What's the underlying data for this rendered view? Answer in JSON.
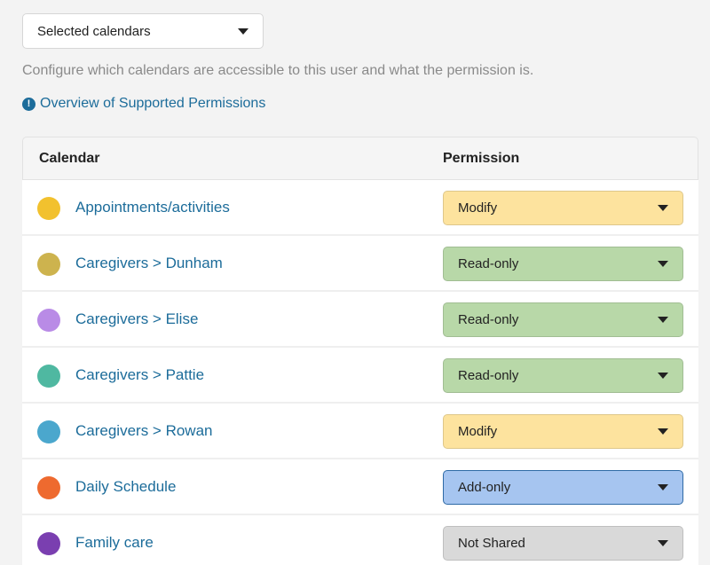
{
  "scope_select": {
    "value": "Selected calendars"
  },
  "description": "Configure which calendars are accessible to this user and what the permission is.",
  "overview_link": {
    "icon": "info-icon",
    "icon_glyph": "!",
    "label": "Overview of Supported Permissions"
  },
  "table": {
    "headers": {
      "calendar": "Calendar",
      "permission": "Permission"
    },
    "rows": [
      {
        "name": "Appointments/activities",
        "color": "#f2c12e",
        "permission": "Modify",
        "perm_bg": "#fde39e"
      },
      {
        "name": "Caregivers > Dunham",
        "color": "#cdb34e",
        "permission": "Read-only",
        "perm_bg": "#b8d8a8"
      },
      {
        "name": "Caregivers > Elise",
        "color": "#b98be6",
        "permission": "Read-only",
        "perm_bg": "#b8d8a8"
      },
      {
        "name": "Caregivers > Pattie",
        "color": "#4fb8a1",
        "permission": "Read-only",
        "perm_bg": "#b8d8a8"
      },
      {
        "name": "Caregivers > Rowan",
        "color": "#4ba7cd",
        "permission": "Modify",
        "perm_bg": "#fde39e"
      },
      {
        "name": "Daily Schedule",
        "color": "#ee6a2f",
        "permission": "Add-only",
        "perm_bg": "#a6c5f0",
        "focused": true
      },
      {
        "name": "Family care",
        "color": "#7a3fb0",
        "permission": "Not Shared",
        "perm_bg": "#d9d9d9"
      }
    ]
  }
}
